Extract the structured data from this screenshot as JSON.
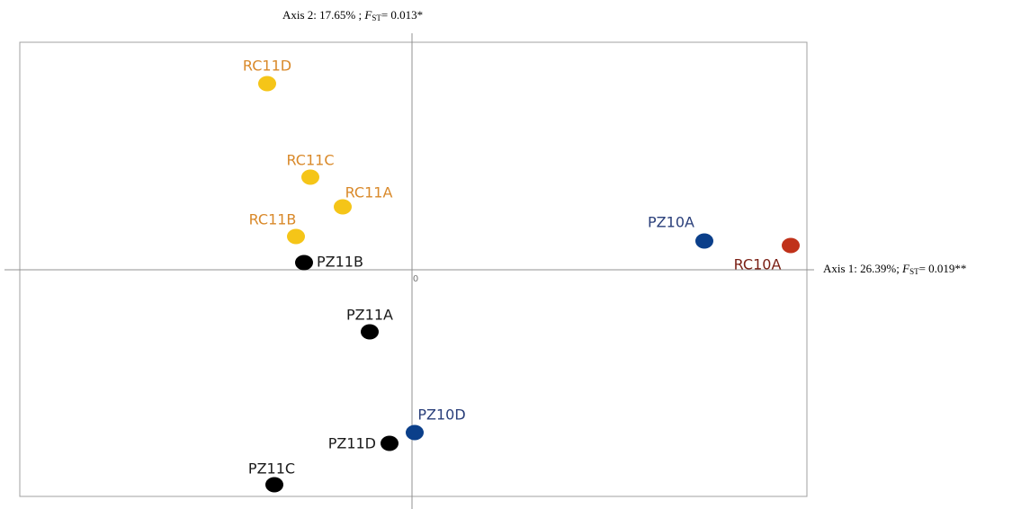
{
  "chart_data": {
    "type": "scatter",
    "x_label": {
      "prefix": "Axis 1: 26.39%;",
      "stat": "F",
      "sub": "ST",
      "suffix": "= 0.019**"
    },
    "y_label": {
      "prefix": "Axis 2: 17.65% ;",
      "stat": "F",
      "sub": "ST",
      "suffix": "= 0.013*"
    },
    "xlim": [
      -4.36,
      4.39
    ],
    "ylim": [
      -2.52,
      2.53
    ],
    "xticks": [
      0
    ],
    "points": [
      {
        "label": "RC11D",
        "x": -1.61,
        "y": 2.07,
        "color": "#f5c518",
        "label_color": "#d9892a"
      },
      {
        "label": "RC11C",
        "x": -1.13,
        "y": 1.03,
        "color": "#f5c518",
        "label_color": "#d9892a"
      },
      {
        "label": "RC11A",
        "x": -0.77,
        "y": 0.7,
        "color": "#f5c518",
        "label_color": "#d9892a"
      },
      {
        "label": "RC11B",
        "x": -1.29,
        "y": 0.37,
        "color": "#f5c518",
        "label_color": "#d9892a"
      },
      {
        "label": "PZ11B",
        "x": -1.2,
        "y": 0.08,
        "color": "#000000",
        "label_color": "#1a1a1a"
      },
      {
        "label": "PZ10A",
        "x": 3.25,
        "y": 0.32,
        "color": "#0b3f8a",
        "label_color": "#2a3f7a"
      },
      {
        "label": "RC10A",
        "x": 4.21,
        "y": 0.27,
        "color": "#c0321a",
        "label_color": "#7a1f14"
      },
      {
        "label": "PZ11A",
        "x": -0.47,
        "y": -0.69,
        "color": "#000000",
        "label_color": "#1a1a1a"
      },
      {
        "label": "PZ10D",
        "x": 0.03,
        "y": -1.81,
        "color": "#0b3f8a",
        "label_color": "#2a3f7a"
      },
      {
        "label": "PZ11D",
        "x": -0.25,
        "y": -1.93,
        "color": "#000000",
        "label_color": "#1a1a1a"
      },
      {
        "label": "PZ11C",
        "x": -1.53,
        "y": -2.39,
        "color": "#000000",
        "label_color": "#1a1a1a"
      }
    ]
  }
}
